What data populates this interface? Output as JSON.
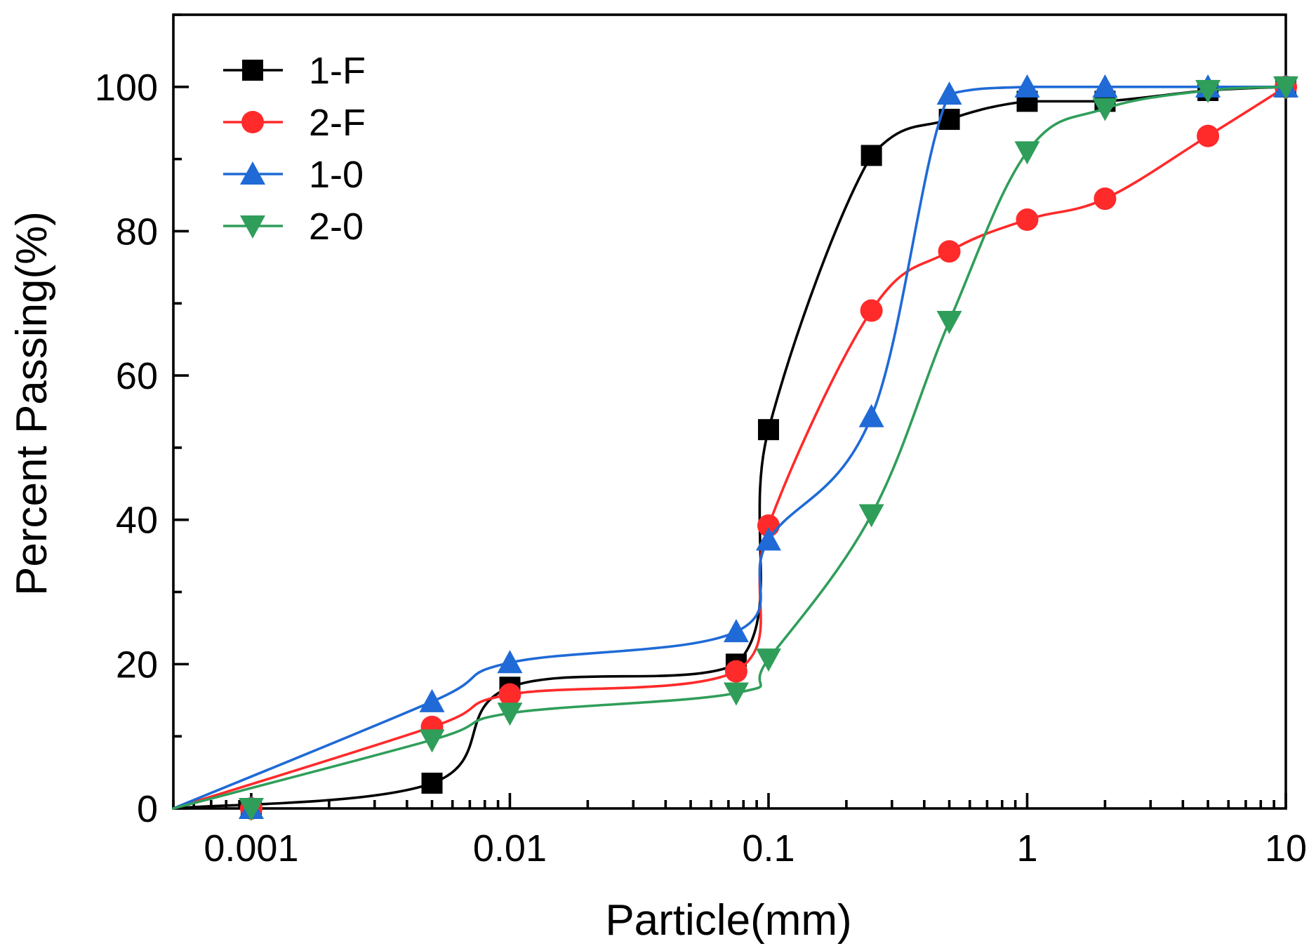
{
  "chart_data": {
    "type": "line",
    "title": "",
    "xlabel": "Particle(mm)",
    "ylabel": "Percent Passing(%)",
    "xscale": "log",
    "xlim": [
      0.0005,
      10
    ],
    "ylim": [
      0,
      110
    ],
    "x_ticks": [
      {
        "value": 0.001,
        "label": "0.001"
      },
      {
        "value": 0.01,
        "label": "0.01"
      },
      {
        "value": 0.1,
        "label": "0.1"
      },
      {
        "value": 1,
        "label": "1"
      },
      {
        "value": 10,
        "label": "10"
      }
    ],
    "y_ticks": [
      {
        "value": 0,
        "label": "0"
      },
      {
        "value": 20,
        "label": "20"
      },
      {
        "value": 40,
        "label": "40"
      },
      {
        "value": 60,
        "label": "60"
      },
      {
        "value": 80,
        "label": "80"
      },
      {
        "value": 100,
        "label": "100"
      }
    ],
    "grid": false,
    "legend_position": "top-left",
    "series": [
      {
        "name": "1-F",
        "color": "#000000",
        "marker": "square",
        "x": [
          0.001,
          0.005,
          0.01,
          0.075,
          0.1,
          0.25,
          0.5,
          1,
          2,
          5,
          10
        ],
        "y": [
          0,
          3.5,
          16.8,
          20,
          52.5,
          90.5,
          95.5,
          98,
          98,
          99.5,
          100
        ]
      },
      {
        "name": "2-F",
        "color": "#ff2a2a",
        "marker": "circle",
        "x": [
          0.001,
          0.005,
          0.01,
          0.075,
          0.1,
          0.25,
          0.5,
          1,
          2,
          5,
          10
        ],
        "y": [
          0,
          11.3,
          15.8,
          19,
          39.2,
          69,
          77.2,
          81.6,
          84.5,
          93.2,
          100
        ]
      },
      {
        "name": "1-0",
        "color": "#1f6ad6",
        "marker": "triangle-up",
        "x": [
          0.001,
          0.005,
          0.01,
          0.075,
          0.1,
          0.25,
          0.5,
          1,
          2,
          5,
          10
        ],
        "y": [
          0,
          14.8,
          20.2,
          24.5,
          37.2,
          54.3,
          99,
          100,
          100,
          100,
          100
        ]
      },
      {
        "name": "2-0",
        "color": "#2f9e5a",
        "marker": "triangle-down",
        "x": [
          0.001,
          0.005,
          0.01,
          0.075,
          0.1,
          0.25,
          0.5,
          1,
          2,
          5,
          10
        ],
        "y": [
          0,
          9.5,
          13.2,
          16,
          20.7,
          40.7,
          67.5,
          91,
          97,
          99.5,
          100
        ]
      }
    ]
  }
}
